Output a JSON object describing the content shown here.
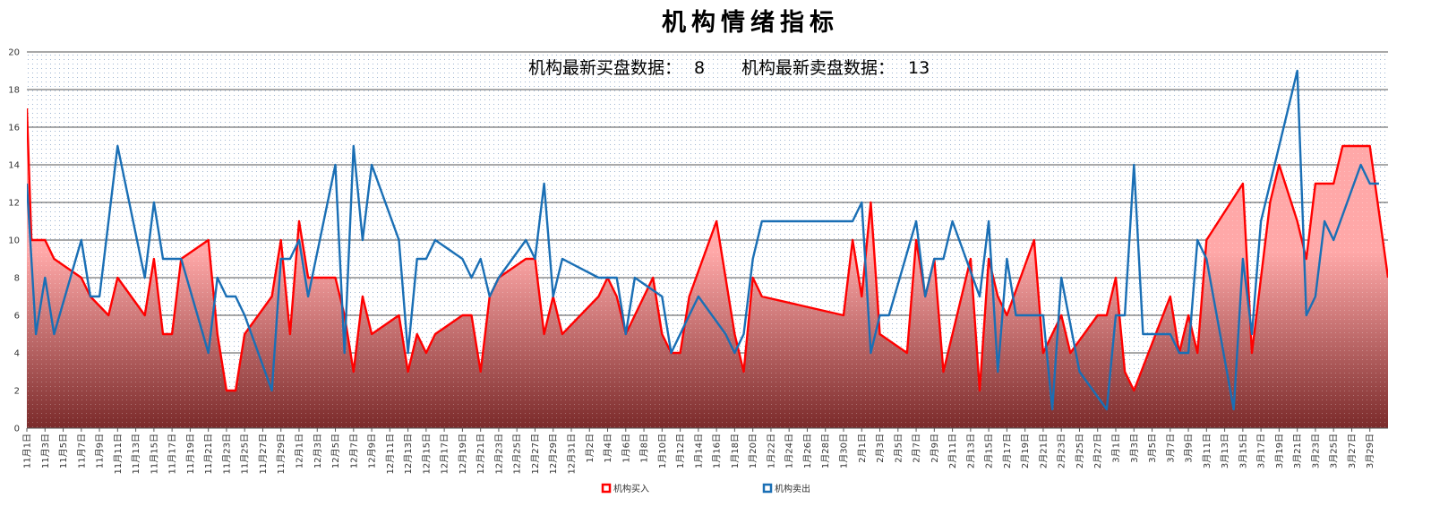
{
  "chart_data": {
    "type": "line",
    "title": "机构情绪指标",
    "stats": {
      "buy_label": "机构最新买盘数据：",
      "buy_value": "8",
      "sell_label": "机构最新卖盘数据：",
      "sell_value": "13"
    },
    "ylim": [
      0,
      20
    ],
    "yticks": [
      0,
      2,
      4,
      6,
      8,
      10,
      12,
      14,
      16,
      18,
      20
    ],
    "grid": true,
    "legend_position": "bottom",
    "xticks": [
      "11月1日",
      "11月3日",
      "11月5日",
      "11月7日",
      "11月9日",
      "11月11日",
      "11月13日",
      "11月15日",
      "11月17日",
      "11月19日",
      "11月21日",
      "11月23日",
      "11月25日",
      "11月27日",
      "11月29日",
      "12月1日",
      "12月3日",
      "12月5日",
      "12月7日",
      "12月9日",
      "12月11日",
      "12月13日",
      "12月15日",
      "12月17日",
      "12月19日",
      "12月21日",
      "12月23日",
      "12月25日",
      "12月27日",
      "12月29日",
      "12月31日",
      "1月2日",
      "1月4日",
      "1月6日",
      "1月8日",
      "1月10日",
      "1月12日",
      "1月14日",
      "1月16日",
      "1月18日",
      "1月20日",
      "1月22日",
      "1月24日",
      "1月26日",
      "1月28日",
      "1月30日",
      "2月1日",
      "2月3日",
      "2月5日",
      "2月7日",
      "2月9日",
      "2月11日",
      "2月13日",
      "2月15日",
      "2月17日",
      "2月19日",
      "2月21日",
      "2月23日",
      "2月25日",
      "2月27日",
      "3月1日",
      "3月3日",
      "3月5日",
      "3月7日",
      "3月9日",
      "3月11日",
      "3月13日",
      "3月15日",
      "3月17日",
      "3月19日",
      "3月21日",
      "3月23日",
      "3月25日",
      "3月27日",
      "3月29日"
    ],
    "series": [
      {
        "name": "机构买入",
        "color": "#ff0000",
        "fill_top": "#ffa8a8",
        "fill_bottom": "#7a2a2a",
        "points": [
          [
            0,
            17
          ],
          [
            0.5,
            10
          ],
          [
            2,
            10
          ],
          [
            3,
            9
          ],
          [
            6,
            8
          ],
          [
            7,
            7
          ],
          [
            9,
            6
          ],
          [
            10,
            8
          ],
          [
            13,
            6
          ],
          [
            14,
            9
          ],
          [
            15,
            5
          ],
          [
            16,
            5
          ],
          [
            17,
            9
          ],
          [
            20,
            10
          ],
          [
            21,
            5
          ],
          [
            22,
            2
          ],
          [
            23,
            2
          ],
          [
            24,
            5
          ],
          [
            27,
            7
          ],
          [
            28,
            10
          ],
          [
            29,
            5
          ],
          [
            30,
            11
          ],
          [
            31,
            8
          ],
          [
            34,
            8
          ],
          [
            35,
            6
          ],
          [
            36,
            3
          ],
          [
            37,
            7
          ],
          [
            38,
            5
          ],
          [
            41,
            6
          ],
          [
            42,
            3
          ],
          [
            43,
            5
          ],
          [
            44,
            4
          ],
          [
            45,
            5
          ],
          [
            48,
            6
          ],
          [
            49,
            6
          ],
          [
            50,
            3
          ],
          [
            51,
            7
          ],
          [
            52,
            8
          ],
          [
            55,
            9
          ],
          [
            56,
            9
          ],
          [
            57,
            5
          ],
          [
            58,
            7
          ],
          [
            59,
            5
          ],
          [
            63,
            7
          ],
          [
            64,
            8
          ],
          [
            65,
            7
          ],
          [
            66,
            5
          ],
          [
            69,
            8
          ],
          [
            70,
            5
          ],
          [
            71,
            4
          ],
          [
            72,
            4
          ],
          [
            73,
            7
          ],
          [
            76,
            11
          ],
          [
            78,
            5
          ],
          [
            79,
            3
          ],
          [
            80,
            8
          ],
          [
            81,
            7
          ],
          [
            90,
            6
          ],
          [
            91,
            10
          ],
          [
            92,
            7
          ],
          [
            93,
            12
          ],
          [
            94,
            5
          ],
          [
            97,
            4
          ],
          [
            98,
            10
          ],
          [
            99,
            7
          ],
          [
            100,
            9
          ],
          [
            101,
            3
          ],
          [
            104,
            9
          ],
          [
            105,
            2
          ],
          [
            106,
            9
          ],
          [
            107,
            7
          ],
          [
            108,
            6
          ],
          [
            111,
            10
          ],
          [
            112,
            4
          ],
          [
            114,
            6
          ],
          [
            115,
            4
          ],
          [
            118,
            6
          ],
          [
            119,
            6
          ],
          [
            120,
            8
          ],
          [
            121,
            3
          ],
          [
            122,
            2
          ],
          [
            126,
            7
          ],
          [
            127,
            4
          ],
          [
            128,
            6
          ],
          [
            129,
            4
          ],
          [
            130,
            10
          ],
          [
            134,
            13
          ],
          [
            135,
            4
          ],
          [
            137,
            12
          ],
          [
            138,
            14
          ],
          [
            140,
            11
          ],
          [
            141,
            9
          ],
          [
            142,
            13
          ],
          [
            144,
            13
          ],
          [
            145,
            15
          ],
          [
            148,
            15
          ],
          [
            150,
            8
          ]
        ]
      },
      {
        "name": "机构卖出",
        "color": "#1a6fb5",
        "points": [
          [
            0,
            13
          ],
          [
            1,
            5
          ],
          [
            2,
            8
          ],
          [
            3,
            5
          ],
          [
            6,
            10
          ],
          [
            7,
            7
          ],
          [
            8,
            7
          ],
          [
            10,
            15
          ],
          [
            13,
            8
          ],
          [
            14,
            12
          ],
          [
            15,
            9
          ],
          [
            17,
            9
          ],
          [
            20,
            4
          ],
          [
            21,
            8
          ],
          [
            22,
            7
          ],
          [
            23,
            7
          ],
          [
            24,
            6
          ],
          [
            27,
            2
          ],
          [
            28,
            9
          ],
          [
            29,
            9
          ],
          [
            30,
            10
          ],
          [
            31,
            7
          ],
          [
            34,
            14
          ],
          [
            35,
            4
          ],
          [
            36,
            15
          ],
          [
            37,
            10
          ],
          [
            38,
            14
          ],
          [
            41,
            10
          ],
          [
            42,
            4
          ],
          [
            43,
            9
          ],
          [
            44,
            9
          ],
          [
            45,
            10
          ],
          [
            48,
            9
          ],
          [
            49,
            8
          ],
          [
            50,
            9
          ],
          [
            51,
            7
          ],
          [
            52,
            8
          ],
          [
            55,
            10
          ],
          [
            56,
            9
          ],
          [
            57,
            13
          ],
          [
            58,
            7
          ],
          [
            59,
            9
          ],
          [
            63,
            8
          ],
          [
            65,
            8
          ],
          [
            66,
            5
          ],
          [
            67,
            8
          ],
          [
            70,
            7
          ],
          [
            71,
            4
          ],
          [
            73,
            6
          ],
          [
            74,
            7
          ],
          [
            77,
            5
          ],
          [
            78,
            4
          ],
          [
            79,
            5
          ],
          [
            80,
            9
          ],
          [
            81,
            11
          ],
          [
            91,
            11
          ],
          [
            92,
            12
          ],
          [
            93,
            4
          ],
          [
            94,
            6
          ],
          [
            95,
            6
          ],
          [
            98,
            11
          ],
          [
            99,
            7
          ],
          [
            100,
            9
          ],
          [
            101,
            9
          ],
          [
            102,
            11
          ],
          [
            105,
            7
          ],
          [
            106,
            11
          ],
          [
            107,
            3
          ],
          [
            108,
            9
          ],
          [
            109,
            6
          ],
          [
            112,
            6
          ],
          [
            113,
            1
          ],
          [
            114,
            8
          ],
          [
            116,
            3
          ],
          [
            119,
            1
          ],
          [
            120,
            6
          ],
          [
            121,
            6
          ],
          [
            122,
            14
          ],
          [
            123,
            5
          ],
          [
            126,
            5
          ],
          [
            127,
            4
          ],
          [
            128,
            4
          ],
          [
            129,
            10
          ],
          [
            130,
            9
          ],
          [
            133,
            1
          ],
          [
            134,
            9
          ],
          [
            135,
            5
          ],
          [
            136,
            11
          ],
          [
            137,
            13
          ],
          [
            140,
            19
          ],
          [
            141,
            6
          ],
          [
            142,
            7
          ],
          [
            143,
            11
          ],
          [
            144,
            10
          ],
          [
            147,
            14
          ],
          [
            148,
            13
          ],
          [
            149,
            13
          ]
        ]
      }
    ]
  }
}
